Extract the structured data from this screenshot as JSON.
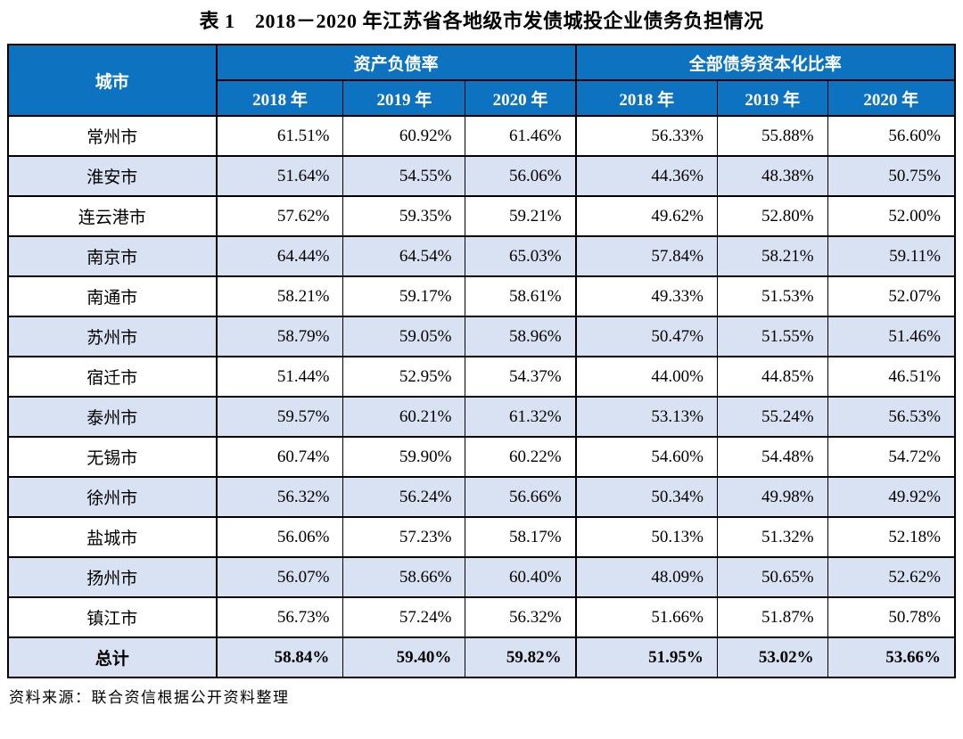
{
  "page": {
    "title": "表 1　2018－2020 年江苏省各地级市发债城投企业债务负担情况",
    "source_note": "资料来源：联合资信根据公开资料整理"
  },
  "colors": {
    "header_bg": "#0d72bf",
    "header_text": "#ffffff",
    "stripe_bg": "#d9e2f3",
    "border": "#000000"
  },
  "table": {
    "city_header": "城市",
    "group_headers": [
      "资产负债率",
      "全部债务资本化比率"
    ],
    "year_headers": [
      "2018 年",
      "2019 年",
      "2020 年",
      "2018 年",
      "2019 年",
      "2020 年"
    ],
    "rows": [
      {
        "city": "常州市",
        "is_total": false,
        "values": [
          "61.51%",
          "60.92%",
          "61.46%",
          "56.33%",
          "55.88%",
          "56.60%"
        ]
      },
      {
        "city": "淮安市",
        "is_total": false,
        "values": [
          "51.64%",
          "54.55%",
          "56.06%",
          "44.36%",
          "48.38%",
          "50.75%"
        ]
      },
      {
        "city": "连云港市",
        "is_total": false,
        "values": [
          "57.62%",
          "59.35%",
          "59.21%",
          "49.62%",
          "52.80%",
          "52.00%"
        ]
      },
      {
        "city": "南京市",
        "is_total": false,
        "values": [
          "64.44%",
          "64.54%",
          "65.03%",
          "57.84%",
          "58.21%",
          "59.11%"
        ]
      },
      {
        "city": "南通市",
        "is_total": false,
        "values": [
          "58.21%",
          "59.17%",
          "58.61%",
          "49.33%",
          "51.53%",
          "52.07%"
        ]
      },
      {
        "city": "苏州市",
        "is_total": false,
        "values": [
          "58.79%",
          "59.05%",
          "58.96%",
          "50.47%",
          "51.55%",
          "51.46%"
        ]
      },
      {
        "city": "宿迁市",
        "is_total": false,
        "values": [
          "51.44%",
          "52.95%",
          "54.37%",
          "44.00%",
          "44.85%",
          "46.51%"
        ]
      },
      {
        "city": "泰州市",
        "is_total": false,
        "values": [
          "59.57%",
          "60.21%",
          "61.32%",
          "53.13%",
          "55.24%",
          "56.53%"
        ]
      },
      {
        "city": "无锡市",
        "is_total": false,
        "values": [
          "60.74%",
          "59.90%",
          "60.22%",
          "54.60%",
          "54.48%",
          "54.72%"
        ]
      },
      {
        "city": "徐州市",
        "is_total": false,
        "values": [
          "56.32%",
          "56.24%",
          "56.66%",
          "50.34%",
          "49.98%",
          "49.92%"
        ]
      },
      {
        "city": "盐城市",
        "is_total": false,
        "values": [
          "56.06%",
          "57.23%",
          "58.17%",
          "50.13%",
          "51.32%",
          "52.18%"
        ]
      },
      {
        "city": "扬州市",
        "is_total": false,
        "values": [
          "56.07%",
          "58.66%",
          "60.40%",
          "48.09%",
          "50.65%",
          "52.62%"
        ]
      },
      {
        "city": "镇江市",
        "is_total": false,
        "values": [
          "56.73%",
          "57.24%",
          "56.32%",
          "51.66%",
          "51.87%",
          "50.78%"
        ]
      },
      {
        "city": "总计",
        "is_total": true,
        "values": [
          "58.84%",
          "59.40%",
          "59.82%",
          "51.95%",
          "53.02%",
          "53.66%"
        ]
      }
    ]
  }
}
